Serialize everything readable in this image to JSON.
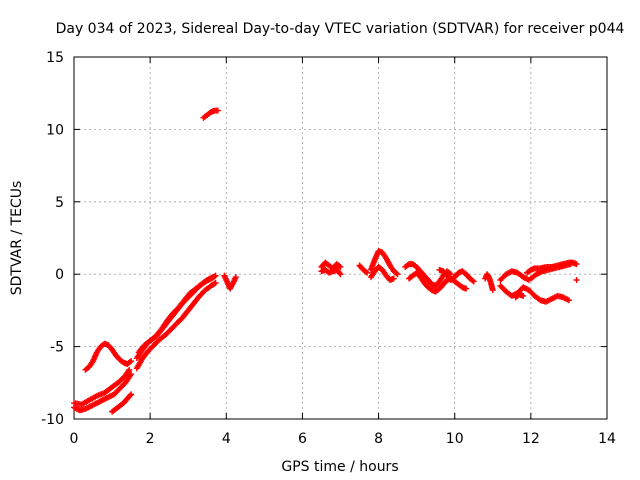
{
  "chart_data": {
    "type": "scatter",
    "title": "Day 034 of 2023, Sidereal Day-to-day VTEC variation (SDTVAR) for receiver p044",
    "xlabel": "GPS time / hours",
    "ylabel": "SDTVAR / TECUs",
    "xlim": [
      0,
      14
    ],
    "ylim": [
      -10,
      15
    ],
    "xticks": [
      0,
      2,
      4,
      6,
      8,
      10,
      12,
      14
    ],
    "yticks": [
      -10,
      -5,
      0,
      5,
      10,
      15
    ],
    "xtick_labels": [
      "0",
      "2",
      "4",
      "6",
      "8",
      "10",
      "12",
      "14"
    ],
    "ytick_labels": [
      "-10",
      "-5",
      "0",
      "5",
      "10",
      "15"
    ],
    "grid": true,
    "marker": "plus",
    "color": "#ff0000",
    "series": [
      {
        "name": "SDTVAR",
        "segments": [
          [
            [
              0.0,
              -9.2
            ],
            [
              0.15,
              -9.4
            ],
            [
              0.3,
              -9.3
            ],
            [
              0.45,
              -9.1
            ],
            [
              0.6,
              -8.9
            ],
            [
              0.75,
              -8.7
            ],
            [
              0.9,
              -8.5
            ],
            [
              1.05,
              -8.3
            ],
            [
              1.2,
              -7.9
            ],
            [
              1.35,
              -7.5
            ],
            [
              1.45,
              -7.1
            ],
            [
              1.5,
              -6.9
            ]
          ],
          [
            [
              0.0,
              -8.9
            ],
            [
              0.2,
              -9.0
            ],
            [
              0.4,
              -8.7
            ],
            [
              0.6,
              -8.4
            ],
            [
              0.8,
              -8.2
            ],
            [
              1.0,
              -7.8
            ],
            [
              1.2,
              -7.4
            ],
            [
              1.35,
              -7.0
            ],
            [
              1.45,
              -6.6
            ]
          ],
          [
            [
              0.3,
              -6.6
            ],
            [
              0.4,
              -6.4
            ],
            [
              0.5,
              -6.0
            ],
            [
              0.6,
              -5.4
            ],
            [
              0.7,
              -5.0
            ],
            [
              0.8,
              -4.8
            ],
            [
              0.9,
              -4.9
            ],
            [
              1.0,
              -5.2
            ],
            [
              1.1,
              -5.6
            ],
            [
              1.2,
              -5.9
            ],
            [
              1.3,
              -6.1
            ],
            [
              1.4,
              -6.2
            ],
            [
              1.5,
              -6.0
            ]
          ],
          [
            [
              1.0,
              -9.5
            ],
            [
              1.1,
              -9.3
            ],
            [
              1.2,
              -9.1
            ],
            [
              1.3,
              -8.9
            ],
            [
              1.4,
              -8.6
            ],
            [
              1.5,
              -8.3
            ]
          ],
          [
            [
              1.65,
              -6.5
            ],
            [
              1.8,
              -5.8
            ],
            [
              1.95,
              -5.3
            ],
            [
              2.1,
              -4.9
            ],
            [
              2.25,
              -4.5
            ],
            [
              2.4,
              -4.2
            ],
            [
              2.55,
              -3.8
            ],
            [
              2.7,
              -3.4
            ],
            [
              2.85,
              -3.0
            ],
            [
              3.0,
              -2.5
            ],
            [
              3.15,
              -2.0
            ],
            [
              3.3,
              -1.5
            ],
            [
              3.45,
              -1.1
            ],
            [
              3.6,
              -0.8
            ],
            [
              3.72,
              -0.6
            ]
          ],
          [
            [
              1.65,
              -5.8
            ],
            [
              1.8,
              -5.2
            ],
            [
              1.95,
              -4.7
            ],
            [
              2.1,
              -4.4
            ],
            [
              2.25,
              -4.0
            ],
            [
              2.4,
              -3.5
            ],
            [
              2.55,
              -3.0
            ],
            [
              2.7,
              -2.5
            ],
            [
              2.85,
              -2.0
            ],
            [
              3.0,
              -1.6
            ],
            [
              3.15,
              -1.2
            ],
            [
              3.3,
              -0.8
            ],
            [
              3.45,
              -0.5
            ],
            [
              3.6,
              -0.3
            ],
            [
              3.72,
              -0.1
            ]
          ],
          [
            [
              1.7,
              -5.4
            ],
            [
              1.85,
              -4.9
            ],
            [
              2.0,
              -4.6
            ],
            [
              2.15,
              -4.3
            ],
            [
              2.3,
              -3.8
            ],
            [
              2.45,
              -3.2
            ],
            [
              2.6,
              -2.7
            ],
            [
              2.75,
              -2.3
            ],
            [
              2.9,
              -1.8
            ],
            [
              3.05,
              -1.3
            ],
            [
              3.2,
              -1.0
            ],
            [
              3.35,
              -0.7
            ],
            [
              3.5,
              -0.4
            ],
            [
              3.65,
              -0.2
            ]
          ],
          [
            [
              3.4,
              10.8
            ],
            [
              3.5,
              11.0
            ],
            [
              3.6,
              11.2
            ],
            [
              3.7,
              11.3
            ],
            [
              3.78,
              11.3
            ]
          ],
          [
            [
              3.95,
              -0.1
            ],
            [
              4.0,
              -0.4
            ],
            [
              4.05,
              -0.7
            ],
            [
              4.1,
              -1.0
            ],
            [
              4.2,
              -0.5
            ],
            [
              4.25,
              -0.2
            ]
          ],
          [
            [
              6.5,
              0.5
            ],
            [
              6.6,
              0.8
            ],
            [
              6.7,
              0.6
            ],
            [
              6.8,
              0.4
            ],
            [
              6.9,
              0.7
            ],
            [
              7.0,
              0.5
            ]
          ],
          [
            [
              6.5,
              0.2
            ],
            [
              6.6,
              0.3
            ],
            [
              6.7,
              0.1
            ],
            [
              6.8,
              0.2
            ],
            [
              6.9,
              0.3
            ],
            [
              7.0,
              0.0
            ]
          ],
          [
            [
              7.5,
              0.6
            ],
            [
              7.6,
              0.3
            ],
            [
              7.7,
              0.1
            ]
          ],
          [
            [
              7.8,
              0.3
            ],
            [
              7.9,
              1.0
            ],
            [
              8.0,
              1.6
            ],
            [
              8.1,
              1.5
            ],
            [
              8.2,
              1.1
            ],
            [
              8.3,
              0.6
            ],
            [
              8.4,
              0.2
            ],
            [
              8.5,
              0.0
            ]
          ],
          [
            [
              7.8,
              -0.2
            ],
            [
              7.9,
              0.2
            ],
            [
              8.0,
              0.5
            ],
            [
              8.1,
              0.3
            ],
            [
              8.2,
              -0.1
            ],
            [
              8.3,
              -0.4
            ],
            [
              8.4,
              -0.3
            ]
          ],
          [
            [
              8.7,
              0.5
            ],
            [
              8.8,
              0.7
            ],
            [
              8.9,
              0.7
            ],
            [
              9.0,
              0.5
            ],
            [
              9.1,
              0.2
            ],
            [
              9.2,
              -0.1
            ],
            [
              9.3,
              -0.4
            ],
            [
              9.4,
              -0.7
            ],
            [
              9.5,
              -0.8
            ],
            [
              9.6,
              -0.5
            ],
            [
              9.7,
              -0.1
            ],
            [
              9.8,
              0.2
            ],
            [
              9.9,
              0.0
            ]
          ],
          [
            [
              8.8,
              -0.3
            ],
            [
              8.9,
              -0.1
            ],
            [
              9.0,
              0.1
            ],
            [
              9.1,
              -0.2
            ],
            [
              9.2,
              -0.6
            ],
            [
              9.3,
              -0.9
            ],
            [
              9.4,
              -1.1
            ],
            [
              9.5,
              -1.2
            ],
            [
              9.6,
              -1.0
            ],
            [
              9.7,
              -0.7
            ],
            [
              9.8,
              -0.4
            ],
            [
              9.9,
              -0.3
            ],
            [
              10.0,
              -0.5
            ],
            [
              10.1,
              -0.7
            ],
            [
              10.2,
              -0.9
            ],
            [
              10.3,
              -1.0
            ]
          ],
          [
            [
              9.6,
              0.3
            ],
            [
              9.7,
              0.2
            ],
            [
              9.8,
              -0.1
            ],
            [
              9.9,
              -0.4
            ],
            [
              10.0,
              -0.2
            ],
            [
              10.1,
              0.1
            ],
            [
              10.2,
              0.2
            ],
            [
              10.3,
              0.0
            ],
            [
              10.4,
              -0.3
            ],
            [
              10.5,
              -0.5
            ]
          ],
          [
            [
              10.8,
              -0.3
            ],
            [
              10.85,
              0.0
            ],
            [
              10.9,
              -0.2
            ],
            [
              10.95,
              -0.6
            ],
            [
              11.0,
              -1.1
            ]
          ],
          [
            [
              11.2,
              -0.4
            ],
            [
              11.35,
              0.0
            ],
            [
              11.5,
              0.2
            ],
            [
              11.65,
              0.1
            ],
            [
              11.8,
              -0.2
            ],
            [
              11.95,
              -0.4
            ]
          ],
          [
            [
              11.2,
              -0.8
            ],
            [
              11.35,
              -1.2
            ],
            [
              11.5,
              -1.5
            ],
            [
              11.65,
              -1.3
            ],
            [
              11.8,
              -0.9
            ],
            [
              11.95,
              -1.1
            ],
            [
              12.1,
              -1.5
            ],
            [
              12.25,
              -1.8
            ],
            [
              12.4,
              -1.9
            ],
            [
              12.55,
              -1.7
            ],
            [
              12.7,
              -1.5
            ],
            [
              12.85,
              -1.6
            ],
            [
              13.0,
              -1.8
            ]
          ],
          [
            [
              11.9,
              0.1
            ],
            [
              12.0,
              0.3
            ],
            [
              12.1,
              0.4
            ],
            [
              12.25,
              0.4
            ],
            [
              12.4,
              0.5
            ],
            [
              12.55,
              0.5
            ],
            [
              12.7,
              0.6
            ],
            [
              12.85,
              0.7
            ],
            [
              13.0,
              0.8
            ],
            [
              13.1,
              0.8
            ],
            [
              13.2,
              0.7
            ]
          ],
          [
            [
              12.0,
              -0.3
            ],
            [
              12.15,
              0.0
            ],
            [
              12.3,
              0.2
            ],
            [
              12.45,
              0.3
            ],
            [
              12.6,
              0.4
            ],
            [
              12.75,
              0.5
            ],
            [
              12.9,
              0.6
            ],
            [
              13.05,
              0.7
            ]
          ],
          [
            [
              11.6,
              -1.6
            ],
            [
              11.7,
              -1.4
            ],
            [
              11.8,
              -1.5
            ]
          ],
          [
            [
              13.2,
              -0.4
            ]
          ]
        ]
      }
    ]
  }
}
